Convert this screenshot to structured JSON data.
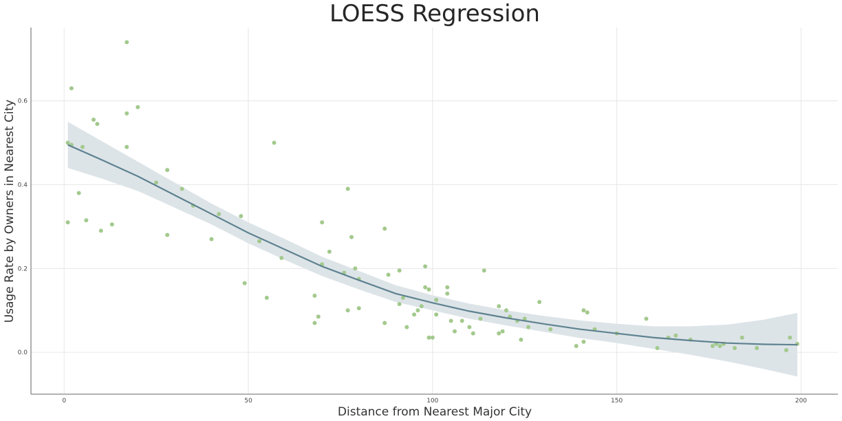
{
  "chart_data": {
    "type": "scatter",
    "title": "LOESS Regression",
    "xlabel": "Distance from Nearest Major City",
    "ylabel": "Usage Rate by Owners in Nearest City",
    "xlim": [
      -9,
      210
    ],
    "ylim": [
      -0.1,
      0.775
    ],
    "x_ticks": [
      0,
      50,
      100,
      150,
      200
    ],
    "y_ticks": [
      0.0,
      0.2,
      0.4,
      0.6
    ],
    "x_tick_labels": [
      "0",
      "50",
      "100",
      "150",
      "200"
    ],
    "y_tick_labels": [
      "0.0",
      "0.2",
      "0.4",
      "0.6"
    ],
    "grid": true,
    "legend": "none",
    "colors": {
      "points": "#a3c98d",
      "line": "#5e8290",
      "band": "#dde4e8"
    },
    "series": [
      {
        "type": "scatter",
        "x": [
          1,
          1,
          2,
          2,
          4,
          5,
          6,
          8,
          9,
          10,
          13,
          17,
          17,
          17,
          20,
          25,
          28,
          28,
          32,
          35,
          40,
          42,
          48,
          49,
          53,
          55,
          57,
          59,
          68,
          68,
          69,
          70,
          70,
          72,
          76,
          77,
          77,
          78,
          79,
          80,
          80,
          87,
          87,
          88,
          91,
          91,
          92,
          93,
          95,
          96,
          97,
          98,
          98,
          99,
          99,
          100,
          101,
          101,
          104,
          104,
          105,
          106,
          108,
          110,
          111,
          113,
          114,
          118,
          118,
          119,
          120,
          121,
          123,
          124,
          125,
          126,
          129,
          132,
          139,
          141,
          141,
          142,
          144,
          150,
          158,
          161,
          164,
          166,
          170,
          176,
          177,
          178,
          179,
          182,
          184,
          188,
          196,
          197,
          199
        ],
        "y": [
          0.31,
          0.5,
          0.63,
          0.495,
          0.38,
          0.49,
          0.315,
          0.555,
          0.545,
          0.29,
          0.305,
          0.49,
          0.57,
          0.74,
          0.585,
          0.405,
          0.435,
          0.28,
          0.39,
          0.35,
          0.27,
          0.33,
          0.325,
          0.165,
          0.265,
          0.13,
          0.5,
          0.225,
          0.135,
          0.07,
          0.085,
          0.21,
          0.31,
          0.24,
          0.19,
          0.39,
          0.1,
          0.275,
          0.2,
          0.175,
          0.105,
          0.295,
          0.07,
          0.185,
          0.195,
          0.115,
          0.13,
          0.06,
          0.09,
          0.1,
          0.11,
          0.155,
          0.205,
          0.035,
          0.15,
          0.035,
          0.125,
          0.09,
          0.155,
          0.14,
          0.075,
          0.05,
          0.075,
          0.06,
          0.045,
          0.08,
          0.195,
          0.11,
          0.045,
          0.05,
          0.1,
          0.085,
          0.075,
          0.03,
          0.08,
          0.06,
          0.12,
          0.055,
          0.015,
          0.025,
          0.1,
          0.095,
          0.055,
          0.045,
          0.08,
          0.01,
          0.035,
          0.04,
          0.03,
          0.015,
          0.02,
          0.015,
          0.02,
          0.01,
          0.035,
          0.01,
          0.005,
          0.035,
          0.02
        ]
      },
      {
        "type": "line",
        "x": [
          1,
          10,
          20,
          30,
          40,
          50,
          60,
          70,
          80,
          90,
          100,
          110,
          120,
          130,
          140,
          150,
          160,
          170,
          180,
          190,
          199
        ],
        "y": [
          0.495,
          0.46,
          0.42,
          0.375,
          0.33,
          0.285,
          0.245,
          0.205,
          0.172,
          0.14,
          0.118,
          0.098,
          0.082,
          0.068,
          0.055,
          0.045,
          0.035,
          0.028,
          0.022,
          0.019,
          0.018
        ],
        "band_lower": [
          0.44,
          0.415,
          0.385,
          0.345,
          0.305,
          0.26,
          0.22,
          0.182,
          0.15,
          0.12,
          0.1,
          0.08,
          0.064,
          0.049,
          0.034,
          0.022,
          0.008,
          -0.006,
          -0.022,
          -0.04,
          -0.058
        ],
        "band_upper": [
          0.55,
          0.505,
          0.455,
          0.405,
          0.355,
          0.31,
          0.27,
          0.228,
          0.194,
          0.16,
          0.136,
          0.116,
          0.1,
          0.087,
          0.076,
          0.068,
          0.062,
          0.062,
          0.066,
          0.078,
          0.094
        ]
      }
    ]
  }
}
